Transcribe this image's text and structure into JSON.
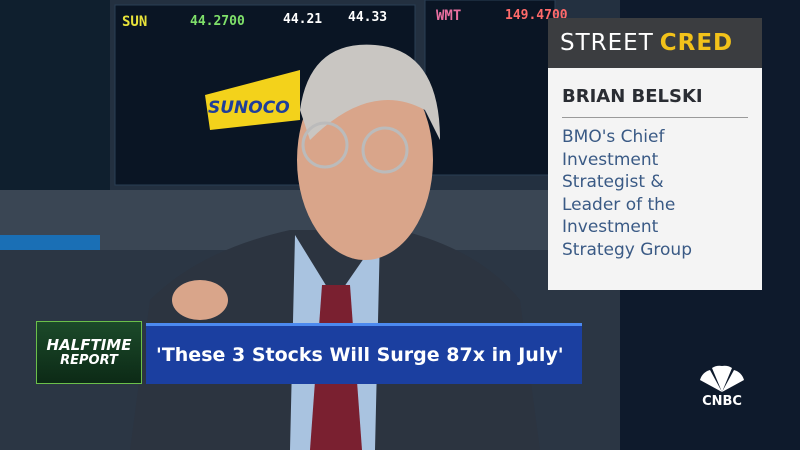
{
  "screens": {
    "tickers": [
      {
        "symbol": "SUN",
        "price": "44.2700",
        "bid": "44.21",
        "ask": "44.33"
      },
      {
        "symbol": "WMT",
        "price": "149.4700"
      }
    ],
    "brand": "SUNOCO"
  },
  "street_cred": {
    "brand_left": "STREET",
    "brand_right": "CRED",
    "name": "BRIAN BELSKI",
    "description_lines": [
      "BMO's Chief",
      "Investment",
      "Strategist &",
      "Leader of the",
      "Investment",
      "Strategy Group"
    ]
  },
  "lower_third": {
    "show_top": "HALFTIME",
    "show_bottom": "REPORT",
    "headline": "'These 3 Stocks Will Surge 87x in July'"
  },
  "network": "CNBC"
}
